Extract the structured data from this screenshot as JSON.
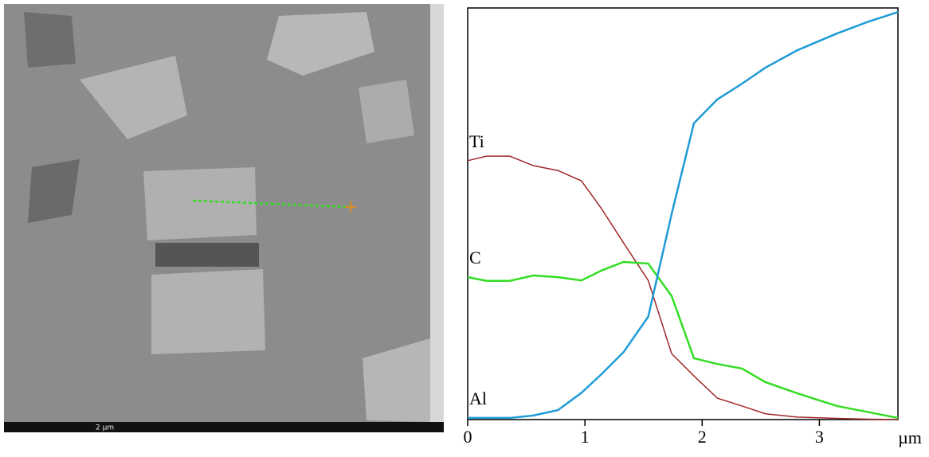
{
  "image": {
    "scale_bar": "2 µm"
  },
  "chart_data": {
    "type": "line",
    "x_label": "µm",
    "x": [
      0,
      0.16,
      0.36,
      0.56,
      0.77,
      0.97,
      1.14,
      1.33,
      1.54,
      1.74,
      1.93,
      2.13,
      2.34,
      2.54,
      2.81,
      3.15,
      3.42,
      3.67
    ],
    "series": [
      {
        "name": "Ti",
        "color": "#a0282a",
        "values": [
          62.9,
          64,
          64,
          61.7,
          60.5,
          58,
          51.3,
          42.9,
          33.8,
          16,
          10.6,
          5.2,
          3.3,
          1.4,
          0.6,
          0.3,
          0.1,
          0
        ]
      },
      {
        "name": "C",
        "color": "#33dd22",
        "values": [
          34.6,
          33.7,
          33.7,
          35,
          34.6,
          33.8,
          36.2,
          38.3,
          37.9,
          30,
          14.9,
          13.5,
          12.4,
          9.1,
          6.4,
          3.3,
          1.8,
          0.4
        ]
      },
      {
        "name": "Al",
        "color": "#1e9bd7",
        "values": [
          0.4,
          0.4,
          0.4,
          1,
          2.3,
          6.5,
          11,
          16.4,
          25,
          50,
          72,
          77.8,
          81.6,
          85.5,
          89.7,
          93.8,
          96.7,
          99
        ]
      }
    ],
    "xlim": [
      0,
      3.67
    ],
    "ylim": [
      0,
      100
    ],
    "xticks": [
      0,
      1,
      2,
      3
    ]
  }
}
